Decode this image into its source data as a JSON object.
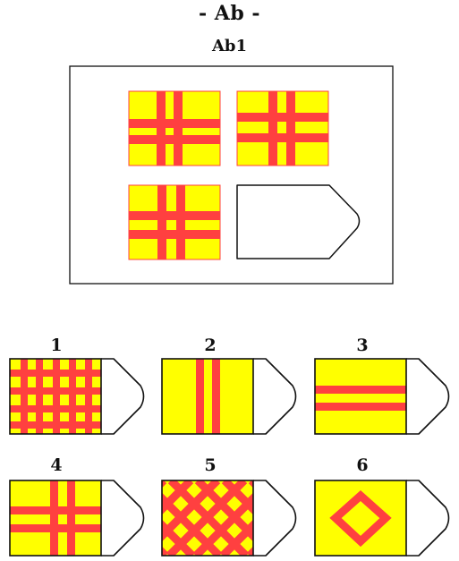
{
  "title": "- Ab -",
  "subtitle": "Ab1",
  "colors": {
    "yellow": "#ffff00",
    "red": "#ff4040",
    "outline": "#111111"
  },
  "options": [
    {
      "label": "1",
      "pattern": "grid-fine"
    },
    {
      "label": "2",
      "pattern": "vertical-stripes"
    },
    {
      "label": "3",
      "pattern": "horizontal-stripes"
    },
    {
      "label": "4",
      "pattern": "cross-double"
    },
    {
      "label": "5",
      "pattern": "lattice"
    },
    {
      "label": "6",
      "pattern": "diamond"
    }
  ]
}
